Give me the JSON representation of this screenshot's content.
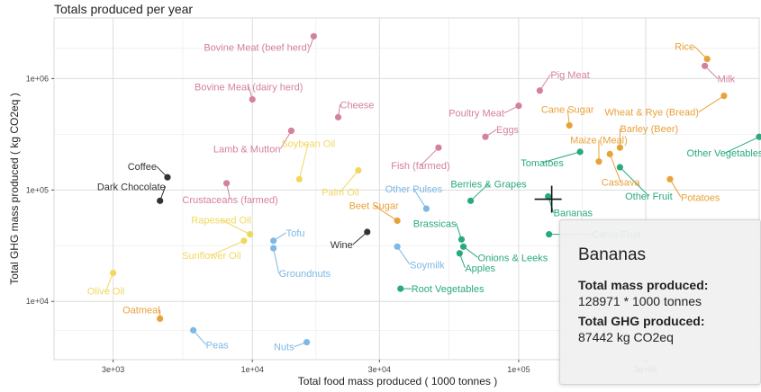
{
  "chart_data": {
    "type": "scatter",
    "title": "Totals produced per year",
    "xlabel": "Total food mass produced ( 1000 tonnes )",
    "ylabel": "Total GHG mass produced ( kg CO2eq )",
    "x_scale": "log",
    "y_scale": "log",
    "xlim": [
      1800,
      800000
    ],
    "ylim": [
      3000,
      3500000
    ],
    "x_ticks": [
      3000,
      10000,
      30000,
      100000,
      300000
    ],
    "x_tick_labels": [
      "3e+03",
      "1e+04",
      "3e+04",
      "1e+05",
      "3e+05"
    ],
    "y_ticks": [
      10000,
      100000,
      1000000
    ],
    "y_tick_labels": [
      "1e+04",
      "1e+05",
      "1e+06"
    ],
    "grid": true,
    "legend": "none",
    "group_colors": {
      "animal": "#d4829b",
      "grain": "#e8a23a",
      "oil": "#f0d860",
      "plant_protein": "#7fb8e3",
      "veg_fruit": "#2aa97f",
      "other": "#333333"
    },
    "points": [
      {
        "label": "Bovine Meat (beef herd)",
        "x": 17000,
        "y": 2400000,
        "group": "animal",
        "label_dx": -4,
        "label_dy": 16,
        "anchor": "end"
      },
      {
        "label": "Bovine Meat (dairy herd)",
        "x": 10000,
        "y": 650000,
        "group": "animal",
        "label_dx": -4,
        "label_dy": -10,
        "anchor": "middle"
      },
      {
        "label": "Pig Meat",
        "x": 120000,
        "y": 780000,
        "group": "animal",
        "label_dx": 12,
        "label_dy": -14,
        "anchor": "start"
      },
      {
        "label": "Cheese",
        "x": 21000,
        "y": 450000,
        "group": "animal",
        "label_dx": 2,
        "label_dy": -10,
        "anchor": "start"
      },
      {
        "label": "Poultry Meat",
        "x": 100000,
        "y": 570000,
        "group": "animal",
        "label_dx": -16,
        "label_dy": 12,
        "anchor": "end"
      },
      {
        "label": "Eggs",
        "x": 75000,
        "y": 300000,
        "group": "animal",
        "label_dx": 12,
        "label_dy": -4,
        "anchor": "start"
      },
      {
        "label": "Lamb & Mutton",
        "x": 14000,
        "y": 340000,
        "group": "animal",
        "label_dx": -12,
        "label_dy": 24,
        "anchor": "end"
      },
      {
        "label": "Fish (farmed)",
        "x": 50000,
        "y": 240000,
        "group": "animal",
        "label_dx": -20,
        "label_dy": 24,
        "anchor": "middle"
      },
      {
        "label": "Crustaceans (farmed)",
        "x": 8000,
        "y": 115000,
        "group": "animal",
        "label_dx": 4,
        "label_dy": 22,
        "anchor": "middle"
      },
      {
        "label": "Milk",
        "x": 500000,
        "y": 1300000,
        "group": "animal",
        "label_dx": 14,
        "label_dy": 18,
        "anchor": "start"
      },
      {
        "label": "Rice",
        "x": 510000,
        "y": 1500000,
        "group": "grain",
        "label_dx": -14,
        "label_dy": -10,
        "anchor": "end"
      },
      {
        "label": "Wheat & Rye (Bread)",
        "x": 590000,
        "y": 700000,
        "group": "grain",
        "label_dx": -28,
        "label_dy": 22,
        "anchor": "end"
      },
      {
        "label": "Cane Sugar",
        "x": 155000,
        "y": 380000,
        "group": "grain",
        "label_dx": -2,
        "label_dy": -14,
        "anchor": "middle"
      },
      {
        "label": "Barley (Beer)",
        "x": 240000,
        "y": 240000,
        "group": "grain",
        "label_dx": 0,
        "label_dy": -17,
        "anchor": "start"
      },
      {
        "label": "Maize (Meal)",
        "x": 200000,
        "y": 180000,
        "group": "grain",
        "label_dx": 0,
        "label_dy": -20,
        "anchor": "middle"
      },
      {
        "label": "Cassava",
        "x": 220000,
        "y": 210000,
        "group": "grain",
        "label_dx": 12,
        "label_dy": 35,
        "anchor": "middle"
      },
      {
        "label": "Potatoes",
        "x": 370000,
        "y": 125000,
        "group": "grain",
        "label_dx": 12,
        "label_dy": 24,
        "anchor": "start"
      },
      {
        "label": "Beet Sugar",
        "x": 35000,
        "y": 53000,
        "group": "grain",
        "label_dx": -26,
        "label_dy": -13,
        "anchor": "middle"
      },
      {
        "label": "Oatmeal",
        "x": 4500,
        "y": 7000,
        "group": "grain",
        "label_dx": 0,
        "label_dy": -6,
        "anchor": "end"
      },
      {
        "label": "Soybean Oil",
        "x": 15000,
        "y": 125000,
        "group": "oil",
        "label_dx": 10,
        "label_dy": -36,
        "anchor": "middle"
      },
      {
        "label": "Palm Oil",
        "x": 25000,
        "y": 150000,
        "group": "oil",
        "label_dx": -20,
        "label_dy": 28,
        "anchor": "middle"
      },
      {
        "label": "Rapeseed Oil",
        "x": 9800,
        "y": 40000,
        "group": "oil",
        "label_dx": -32,
        "label_dy": -12,
        "anchor": "middle"
      },
      {
        "label": "Sunflower Oil",
        "x": 9300,
        "y": 35000,
        "group": "oil",
        "label_dx": -36,
        "label_dy": 20,
        "anchor": "middle"
      },
      {
        "label": "Olive Oil",
        "x": 3000,
        "y": 18000,
        "group": "oil",
        "label_dx": -8,
        "label_dy": 24,
        "anchor": "middle"
      },
      {
        "label": "Tofu",
        "x": 12000,
        "y": 35000,
        "group": "plant_protein",
        "label_dx": 14,
        "label_dy": -5,
        "anchor": "start"
      },
      {
        "label": "Groundnuts",
        "x": 12000,
        "y": 30000,
        "group": "plant_protein",
        "label_dx": 6,
        "label_dy": 32,
        "anchor": "start"
      },
      {
        "label": "Other Pulses",
        "x": 45000,
        "y": 68000,
        "group": "plant_protein",
        "label_dx": -14,
        "label_dy": -18,
        "anchor": "middle"
      },
      {
        "label": "Soymilk",
        "x": 35000,
        "y": 31000,
        "group": "plant_protein",
        "label_dx": 14,
        "label_dy": 24,
        "anchor": "start"
      },
      {
        "label": "Peas",
        "x": 6000,
        "y": 5500,
        "group": "plant_protein",
        "label_dx": 14,
        "label_dy": 20,
        "anchor": "start"
      },
      {
        "label": "Nuts",
        "x": 16000,
        "y": 4300,
        "group": "plant_protein",
        "label_dx": -14,
        "label_dy": 9,
        "anchor": "end"
      },
      {
        "label": "Tomatoes",
        "x": 170000,
        "y": 220000,
        "group": "veg_fruit",
        "label_dx": -42,
        "label_dy": 16,
        "anchor": "middle"
      },
      {
        "label": "Other Vegetables",
        "x": 800000,
        "y": 300000,
        "group": "veg_fruit",
        "label_dx": -38,
        "label_dy": 22,
        "anchor": "middle"
      },
      {
        "label": "Other Fruit",
        "x": 240000,
        "y": 160000,
        "group": "veg_fruit",
        "label_dx": 32,
        "label_dy": 36,
        "anchor": "middle"
      },
      {
        "label": "Berries & Grapes",
        "x": 66000,
        "y": 80000,
        "group": "veg_fruit",
        "label_dx": 20,
        "label_dy": -15,
        "anchor": "middle"
      },
      {
        "label": "Bananas",
        "x": 128971,
        "y": 87442,
        "group": "veg_fruit",
        "label_dx": 6,
        "label_dy": 22,
        "anchor": "start"
      },
      {
        "label": "Brassicas",
        "x": 61000,
        "y": 36000,
        "group": "veg_fruit",
        "label_dx": -6,
        "label_dy": -14,
        "anchor": "end"
      },
      {
        "label": "Citrus Fruit",
        "x": 130000,
        "y": 40000,
        "group": "veg_fruit",
        "label_dx": 48,
        "label_dy": 4,
        "anchor": "start"
      },
      {
        "label": "Onions & Leeks",
        "x": 62000,
        "y": 31000,
        "group": "veg_fruit",
        "label_dx": 16,
        "label_dy": 16,
        "anchor": "start"
      },
      {
        "label": "Apples",
        "x": 60000,
        "y": 27000,
        "group": "veg_fruit",
        "label_dx": 6,
        "label_dy": 20,
        "anchor": "start"
      },
      {
        "label": "Root Vegetables",
        "x": 36000,
        "y": 13000,
        "group": "veg_fruit",
        "label_dx": 12,
        "label_dy": 4,
        "anchor": "start"
      },
      {
        "label": "Coffee",
        "x": 4800,
        "y": 130000,
        "group": "other",
        "label_dx": -12,
        "label_dy": -8,
        "anchor": "end"
      },
      {
        "label": "Dark Chocolate",
        "x": 4500,
        "y": 80000,
        "group": "other",
        "label_dx": 6,
        "label_dy": -12,
        "anchor": "end"
      },
      {
        "label": "Wine",
        "x": 27000,
        "y": 42000,
        "group": "other",
        "label_dx": -16,
        "label_dy": 18,
        "anchor": "end"
      }
    ],
    "hover": {
      "label": "Bananas",
      "x": 128971,
      "y": 87442
    }
  },
  "tooltip": {
    "title": "Bananas",
    "mass_label": "Total mass produced:",
    "mass_value": "128971 * 1000 tonnes",
    "ghg_label": "Total GHG produced:",
    "ghg_value": "87442 kg CO2eq"
  }
}
